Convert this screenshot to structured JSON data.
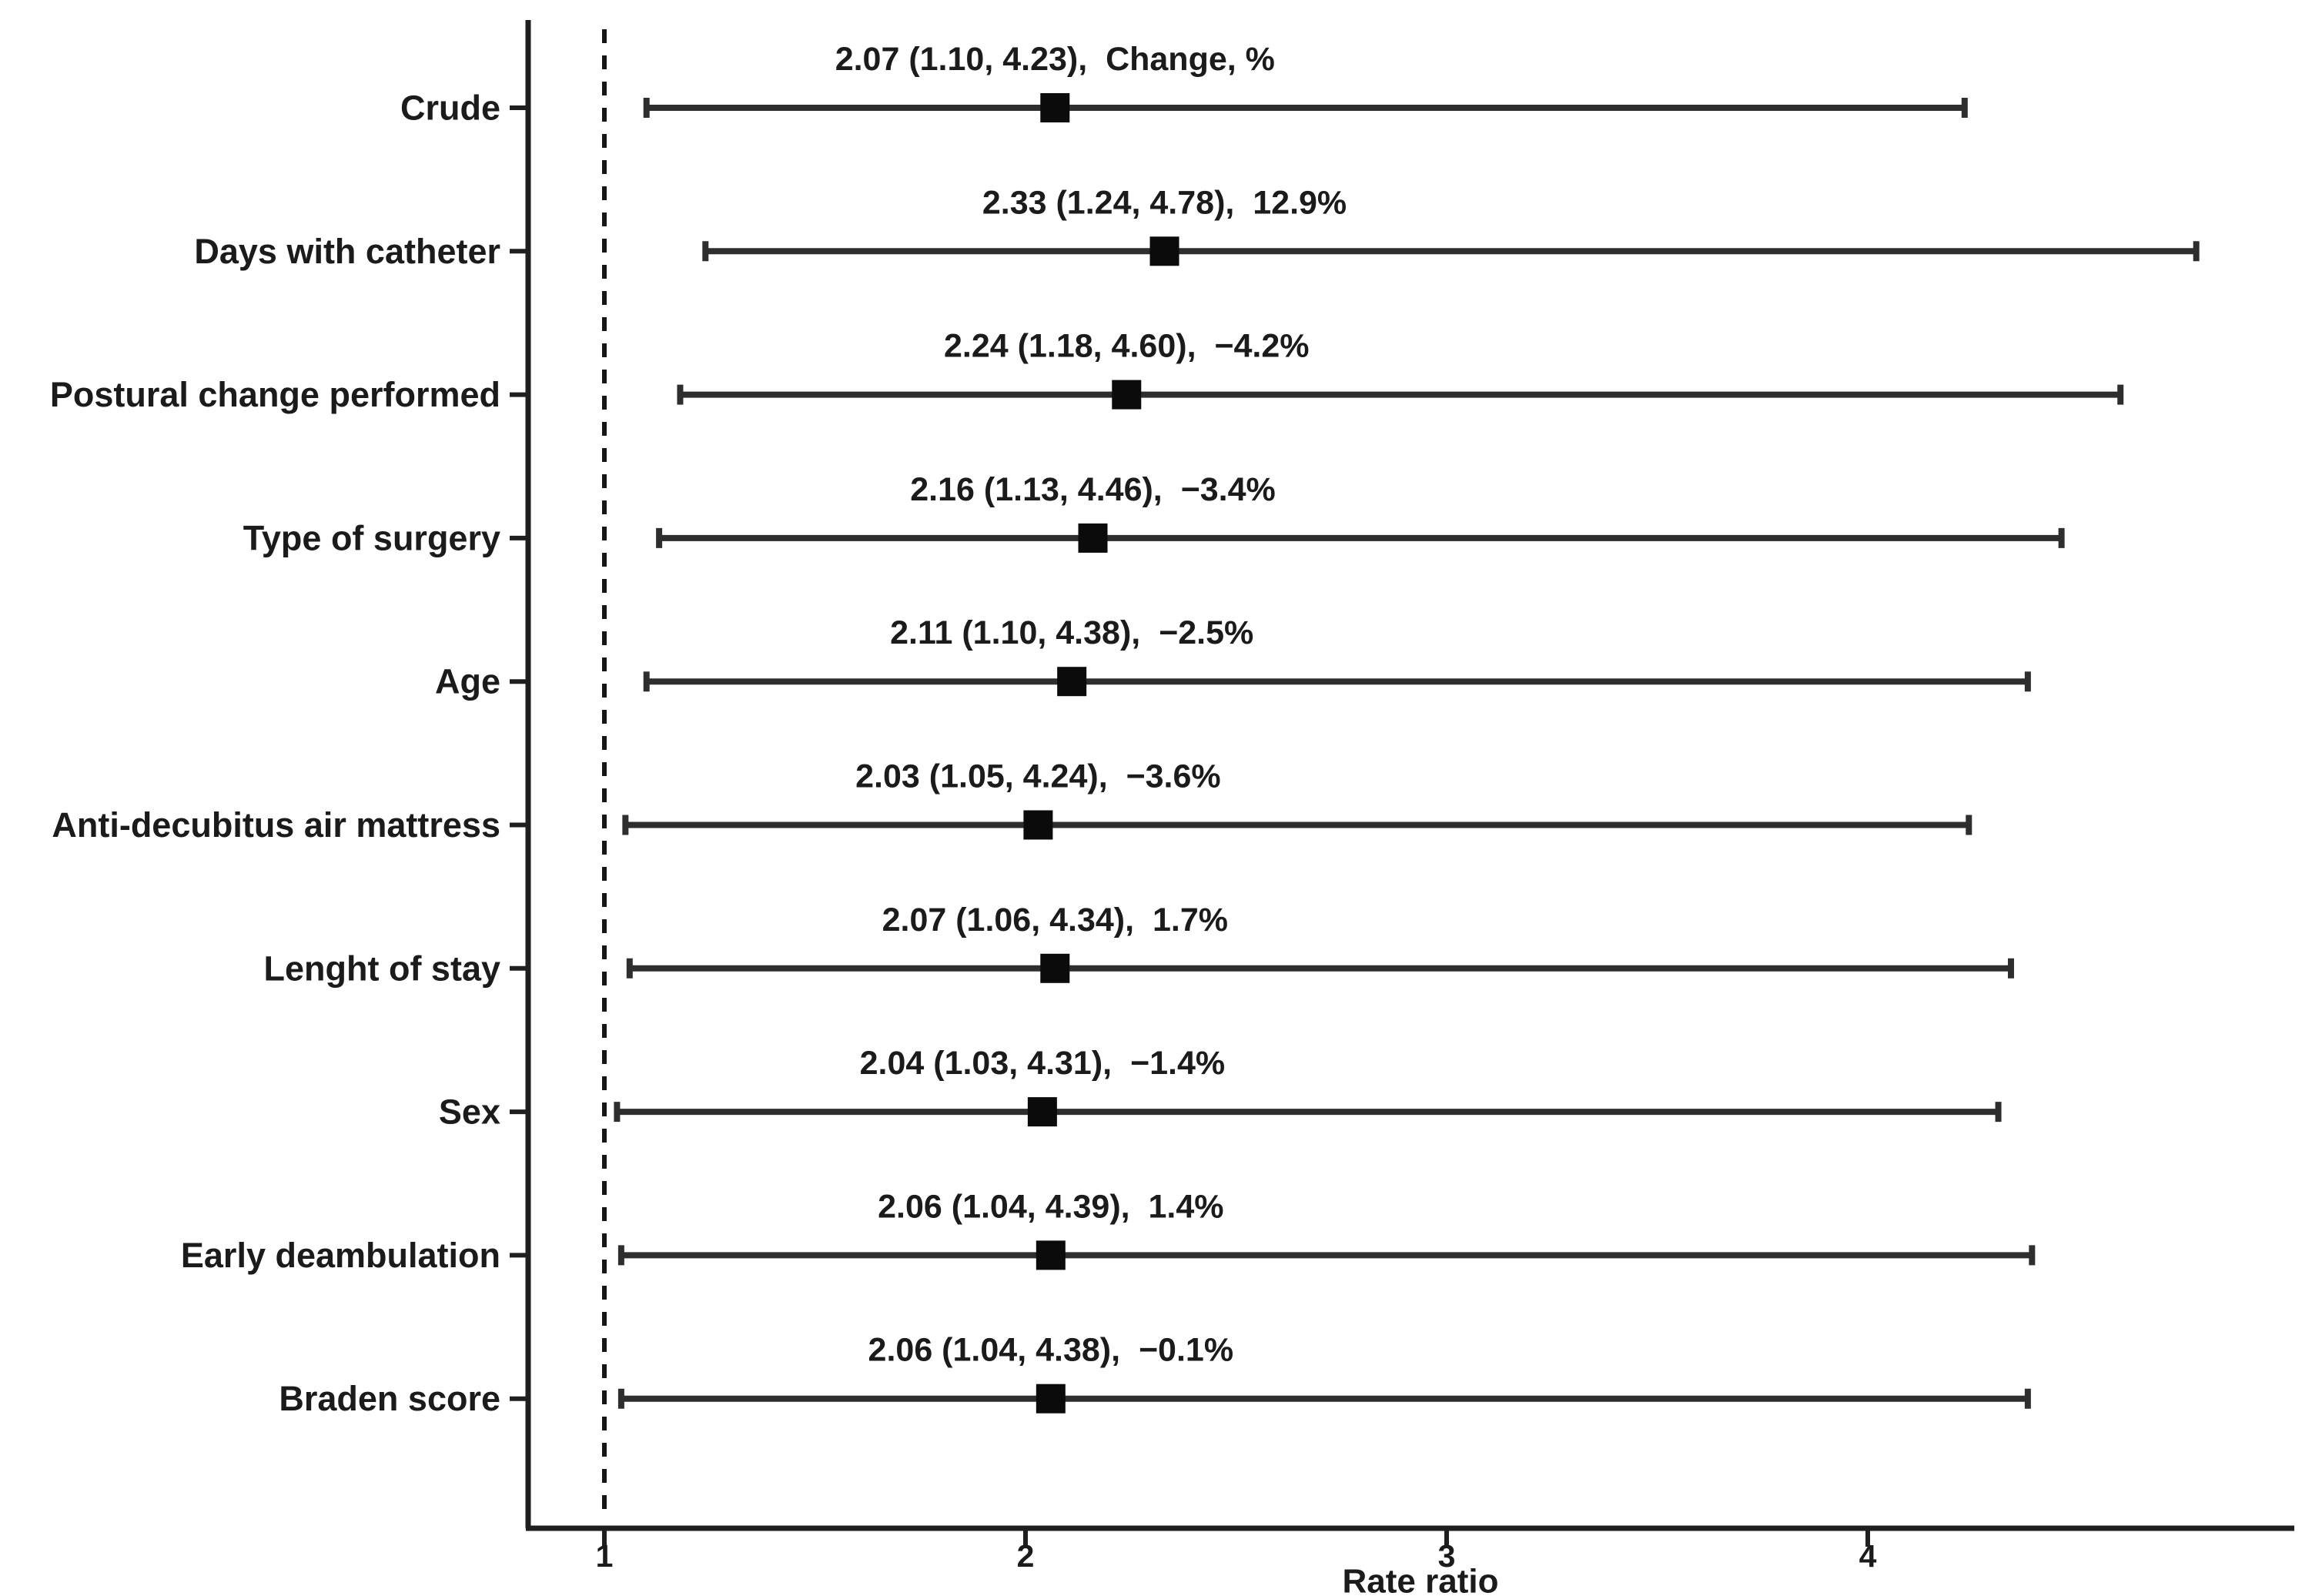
{
  "chart_data": {
    "type": "scatter",
    "subtype": "forest-plot",
    "title": "",
    "xlabel": "Rate ratio",
    "x_ticks": [
      1,
      2,
      3,
      4
    ],
    "xlim": [
      0.82,
      5.0
    ],
    "reference_line": 1,
    "grid": false,
    "legend": "none",
    "rows": [
      {
        "label": "Crude",
        "estimate": 2.07,
        "ci_low": 1.1,
        "ci_high": 4.23,
        "est_label": "2.07 (1.10, 4.23),",
        "change_label": "Change, %"
      },
      {
        "label": "Days with catheter",
        "estimate": 2.33,
        "ci_low": 1.24,
        "ci_high": 4.78,
        "est_label": "2.33 (1.24, 4.78),",
        "change_label": "12.9%"
      },
      {
        "label": "Postural change performed",
        "estimate": 2.24,
        "ci_low": 1.18,
        "ci_high": 4.6,
        "est_label": "2.24 (1.18, 4.60),",
        "change_label": "−4.2%"
      },
      {
        "label": "Type of surgery",
        "estimate": 2.16,
        "ci_low": 1.13,
        "ci_high": 4.46,
        "est_label": "2.16 (1.13, 4.46),",
        "change_label": "−3.4%"
      },
      {
        "label": "Age",
        "estimate": 2.11,
        "ci_low": 1.1,
        "ci_high": 4.38,
        "est_label": "2.11 (1.10, 4.38),",
        "change_label": "−2.5%"
      },
      {
        "label": "Anti-decubitus air mattress",
        "estimate": 2.03,
        "ci_low": 1.05,
        "ci_high": 4.24,
        "est_label": "2.03 (1.05, 4.24),",
        "change_label": "−3.6%"
      },
      {
        "label": "Lenght of stay",
        "estimate": 2.07,
        "ci_low": 1.06,
        "ci_high": 4.34,
        "est_label": "2.07 (1.06, 4.34),",
        "change_label": "1.7%"
      },
      {
        "label": "Sex",
        "estimate": 2.04,
        "ci_low": 1.03,
        "ci_high": 4.31,
        "est_label": "2.04 (1.03, 4.31),",
        "change_label": "−1.4%"
      },
      {
        "label": "Early deambulation",
        "estimate": 2.06,
        "ci_low": 1.04,
        "ci_high": 4.39,
        "est_label": "2.06 (1.04, 4.39),",
        "change_label": "1.4%"
      },
      {
        "label": "Braden score",
        "estimate": 2.06,
        "ci_low": 1.04,
        "ci_high": 4.38,
        "est_label": "2.06 (1.04, 4.38),",
        "change_label": "−0.1%"
      }
    ],
    "colors": {
      "text": "#1b1b1b",
      "line": "#2e2e2e",
      "marker": "#0b0b0b"
    }
  }
}
